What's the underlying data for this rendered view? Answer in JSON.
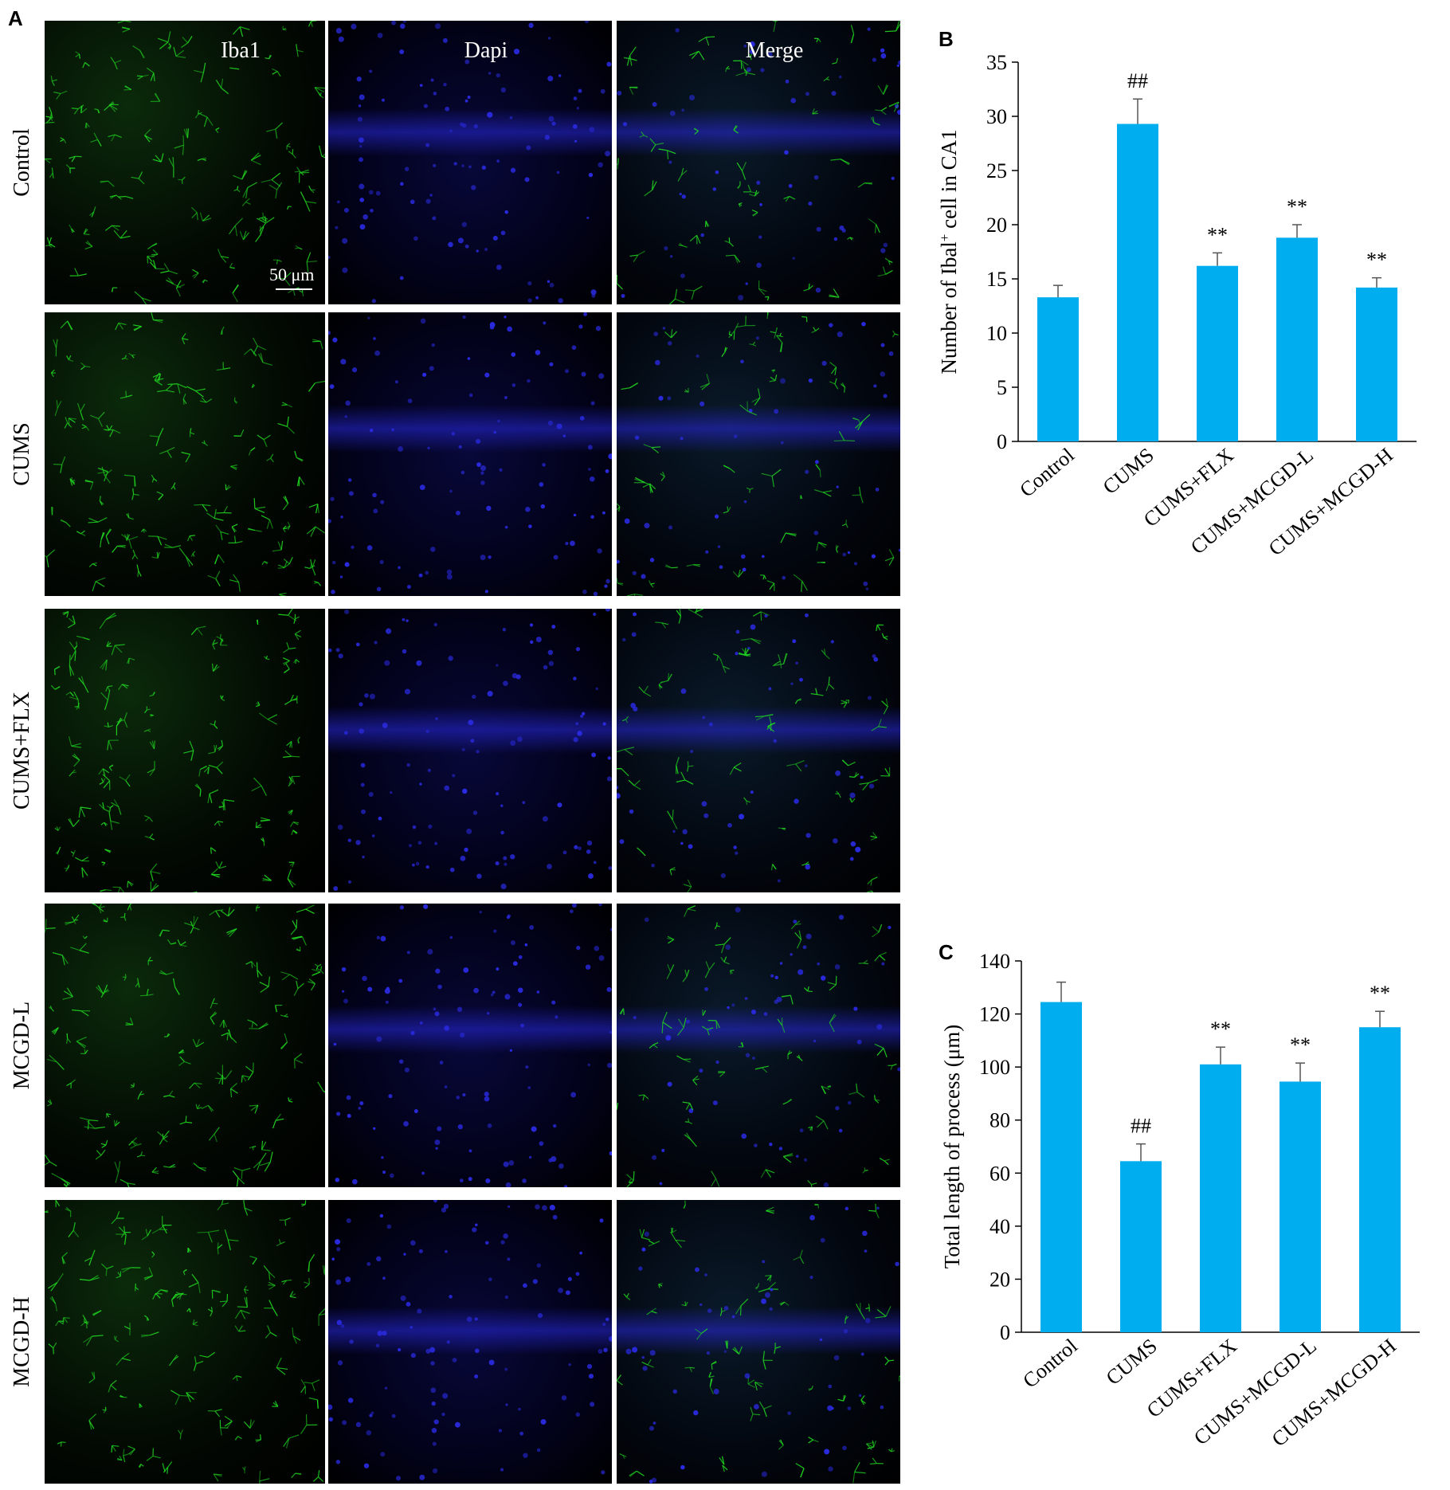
{
  "panel_labels": {
    "a": "A",
    "b": "B",
    "c": "C"
  },
  "micrograph": {
    "columns": [
      "Iba1",
      "Dapi",
      "Merge"
    ],
    "rows": [
      "Control",
      "CUMS",
      "CUMS+FLX",
      "MCGD-L",
      "MCGD-H"
    ],
    "scale_bar": "50 μm",
    "colors": {
      "iba1": "#1fd01f",
      "dapi": "#2a2ae0"
    }
  },
  "chart_data": [
    {
      "type": "bar",
      "categories": [
        "Control",
        "CUMS",
        "CUMS+FLX",
        "CUMS+MCGD-L",
        "CUMS+MCGD-H"
      ],
      "values": [
        13.3,
        29.3,
        16.2,
        18.8,
        14.2
      ],
      "errors": [
        1.1,
        2.3,
        1.2,
        1.2,
        0.9
      ],
      "annotations": [
        "",
        "##",
        "**",
        "**",
        "**"
      ],
      "ylabel_main": "Number of Ibal",
      "ylabel_sup": "+",
      "ylabel_rest": " cell in CA1",
      "ylim": [
        0,
        35
      ],
      "yticks": [
        0,
        5,
        10,
        15,
        20,
        25,
        30,
        35
      ],
      "bar_color": "#00aeef",
      "grid": false
    },
    {
      "type": "bar",
      "categories": [
        "Control",
        "CUMS",
        "CUMS+FLX",
        "CUMS+MCGD-L",
        "CUMS+MCGD-H"
      ],
      "values": [
        124.5,
        64.5,
        101,
        94.5,
        115
      ],
      "errors": [
        7.5,
        6.5,
        6.5,
        7,
        6
      ],
      "annotations": [
        "",
        "##",
        "**",
        "**",
        "**"
      ],
      "ylabel": "Total length of process (μm)",
      "ylim": [
        0,
        140
      ],
      "yticks": [
        0,
        20,
        40,
        60,
        80,
        100,
        120,
        140
      ],
      "bar_color": "#00aeef",
      "grid": false
    }
  ]
}
